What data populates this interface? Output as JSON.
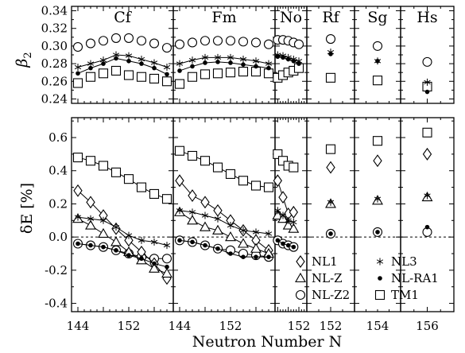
{
  "chart_data": {
    "type": "scatter",
    "xlabel": "Neutron Number N",
    "top_ylabel": "β",
    "top_ylabel_sub": "2",
    "bottom_ylabel": "δE [%]",
    "top_ylim": [
      0.235,
      0.345
    ],
    "top_yticks": [
      "0.24",
      "0.26",
      "0.28",
      "0.30",
      "0.32",
      "0.34"
    ],
    "bottom_ylim": [
      -0.45,
      0.72
    ],
    "bottom_yticks": [
      "0.6",
      "0.4",
      "0.2",
      "0.0",
      "-0.2",
      "-0.4"
    ],
    "legend": {
      "NL1": "NL1",
      "NL3": "NL3",
      "NLZ": "NL-Z",
      "NLRA1": "NL-RA1",
      "NLZ2": "NL-Z2",
      "TM1": "TM1"
    },
    "panels": [
      {
        "element": "Cf",
        "xrange": [
          143,
          159
        ],
        "xticks": [
          "144",
          "152"
        ],
        "beta": {
          "NLZ2": [
            [
              144,
              0.299
            ],
            [
              146,
              0.303
            ],
            [
              148,
              0.306
            ],
            [
              150,
              0.309
            ],
            [
              152,
              0.309
            ],
            [
              154,
              0.306
            ],
            [
              156,
              0.303
            ],
            [
              158,
              0.298
            ]
          ],
          "NL3": [
            [
              144,
              0.276
            ],
            [
              146,
              0.28
            ],
            [
              148,
              0.284
            ],
            [
              150,
              0.29
            ],
            [
              152,
              0.289
            ],
            [
              154,
              0.285
            ],
            [
              156,
              0.281
            ],
            [
              158,
              0.276
            ]
          ],
          "NLRA1": [
            [
              144,
              0.269
            ],
            [
              146,
              0.275
            ],
            [
              148,
              0.28
            ],
            [
              150,
              0.286
            ],
            [
              152,
              0.283
            ],
            [
              154,
              0.28
            ],
            [
              156,
              0.275
            ],
            [
              158,
              0.268
            ]
          ],
          "TM1": [
            [
              144,
              0.258
            ],
            [
              146,
              0.265
            ],
            [
              148,
              0.269
            ],
            [
              150,
              0.272
            ],
            [
              152,
              0.267
            ],
            [
              154,
              0.265
            ],
            [
              156,
              0.263
            ],
            [
              158,
              0.26
            ]
          ]
        },
        "dE": {
          "TM1": [
            [
              144,
              0.48
            ],
            [
              146,
              0.46
            ],
            [
              148,
              0.43
            ],
            [
              150,
              0.39
            ],
            [
              152,
              0.35
            ],
            [
              154,
              0.3
            ],
            [
              156,
              0.26
            ],
            [
              158,
              0.23
            ]
          ],
          "NL1": [
            [
              144,
              0.28
            ],
            [
              146,
              0.21
            ],
            [
              148,
              0.13
            ],
            [
              150,
              0.05
            ],
            [
              152,
              -0.02
            ],
            [
              154,
              -0.09
            ],
            [
              156,
              -0.16
            ],
            [
              158,
              -0.25
            ]
          ],
          "NL3": [
            [
              144,
              0.12
            ],
            [
              146,
              0.11
            ],
            [
              148,
              0.1
            ],
            [
              150,
              0.06
            ],
            [
              152,
              0.01
            ],
            [
              154,
              -0.02
            ],
            [
              156,
              -0.03
            ],
            [
              158,
              -0.05
            ]
          ],
          "NLZ": [
            [
              144,
              0.11
            ],
            [
              146,
              0.07
            ],
            [
              148,
              0.02
            ],
            [
              150,
              -0.03
            ],
            [
              152,
              -0.09
            ],
            [
              154,
              -0.14
            ],
            [
              156,
              -0.19
            ],
            [
              158,
              -0.22
            ]
          ],
          "NLZ2": [
            [
              144,
              -0.04
            ],
            [
              146,
              -0.05
            ],
            [
              148,
              -0.06
            ],
            [
              150,
              -0.08
            ],
            [
              152,
              -0.1
            ],
            [
              154,
              -0.12
            ],
            [
              156,
              -0.13
            ],
            [
              158,
              -0.13
            ]
          ],
          "NLRA1": [
            [
              144,
              -0.04
            ],
            [
              146,
              -0.05
            ],
            [
              148,
              -0.06
            ],
            [
              150,
              -0.08
            ],
            [
              152,
              -0.11
            ],
            [
              154,
              -0.13
            ],
            [
              156,
              -0.16
            ],
            [
              158,
              -0.18
            ]
          ]
        }
      },
      {
        "element": "Fm",
        "xrange": [
          143,
          159
        ],
        "xticks": [
          "144",
          "152"
        ],
        "beta": {
          "NLZ2": [
            [
              144,
              0.302
            ],
            [
              146,
              0.304
            ],
            [
              148,
              0.306
            ],
            [
              150,
              0.306
            ],
            [
              152,
              0.306
            ],
            [
              154,
              0.305
            ],
            [
              156,
              0.304
            ],
            [
              158,
              0.302
            ]
          ],
          "NL3": [
            [
              144,
              0.28
            ],
            [
              146,
              0.284
            ],
            [
              148,
              0.287
            ],
            [
              150,
              0.287
            ],
            [
              152,
              0.287
            ],
            [
              154,
              0.285
            ],
            [
              156,
              0.283
            ],
            [
              158,
              0.28
            ]
          ],
          "NLRA1": [
            [
              144,
              0.272
            ],
            [
              146,
              0.277
            ],
            [
              148,
              0.281
            ],
            [
              150,
              0.282
            ],
            [
              152,
              0.281
            ],
            [
              154,
              0.279
            ],
            [
              156,
              0.277
            ],
            [
              158,
              0.275
            ]
          ],
          "TM1": [
            [
              144,
              0.257
            ],
            [
              146,
              0.265
            ],
            [
              148,
              0.268
            ],
            [
              150,
              0.269
            ],
            [
              152,
              0.27
            ],
            [
              154,
              0.271
            ],
            [
              156,
              0.271
            ],
            [
              158,
              0.269
            ]
          ]
        },
        "dE": {
          "TM1": [
            [
              144,
              0.52
            ],
            [
              146,
              0.49
            ],
            [
              148,
              0.46
            ],
            [
              150,
              0.42
            ],
            [
              152,
              0.38
            ],
            [
              154,
              0.34
            ],
            [
              156,
              0.31
            ],
            [
              158,
              0.3
            ]
          ],
          "NL1": [
            [
              144,
              0.34
            ],
            [
              146,
              0.25
            ],
            [
              148,
              0.21
            ],
            [
              150,
              0.16
            ],
            [
              152,
              0.1
            ],
            [
              154,
              0.04
            ],
            [
              156,
              -0.02
            ],
            [
              158,
              -0.08
            ]
          ],
          "NL3": [
            [
              144,
              0.16
            ],
            [
              146,
              0.15
            ],
            [
              148,
              0.13
            ],
            [
              150,
              0.11
            ],
            [
              152,
              0.07
            ],
            [
              154,
              0.04
            ],
            [
              156,
              0.03
            ],
            [
              158,
              0.02
            ]
          ],
          "NLZ": [
            [
              144,
              0.15
            ],
            [
              146,
              0.1
            ],
            [
              148,
              0.06
            ],
            [
              150,
              0.04
            ],
            [
              152,
              0.0
            ],
            [
              154,
              -0.04
            ],
            [
              156,
              -0.07
            ],
            [
              158,
              -0.1
            ]
          ],
          "NLZ2": [
            [
              144,
              -0.02
            ],
            [
              146,
              -0.03
            ],
            [
              148,
              -0.05
            ],
            [
              150,
              -0.07
            ],
            [
              152,
              -0.08
            ],
            [
              154,
              -0.1
            ],
            [
              156,
              -0.11
            ],
            [
              158,
              -0.12
            ]
          ],
          "NLRA1": [
            [
              144,
              -0.02
            ],
            [
              146,
              -0.03
            ],
            [
              148,
              -0.05
            ],
            [
              150,
              -0.07
            ],
            [
              152,
              -0.1
            ],
            [
              154,
              -0.12
            ],
            [
              156,
              -0.12
            ],
            [
              158,
              -0.12
            ]
          ]
        }
      },
      {
        "element": "No",
        "xrange": [
          143,
          155
        ],
        "xticks": [
          "152"
        ],
        "beta": {
          "NLZ2": [
            [
              144,
              0.307
            ],
            [
              146,
              0.307
            ],
            [
              148,
              0.306
            ],
            [
              150,
              0.304
            ],
            [
              152,
              0.302
            ]
          ],
          "NL3": [
            [
              144,
              0.29
            ],
            [
              146,
              0.289
            ],
            [
              148,
              0.287
            ],
            [
              150,
              0.285
            ],
            [
              152,
              0.283
            ]
          ],
          "NLRA1": [
            [
              144,
              0.288
            ],
            [
              146,
              0.287
            ],
            [
              148,
              0.285
            ],
            [
              150,
              0.283
            ],
            [
              152,
              0.28
            ]
          ],
          "TM1": [
            [
              144,
              0.264
            ],
            [
              146,
              0.267
            ],
            [
              148,
              0.27
            ],
            [
              150,
              0.272
            ],
            [
              152,
              0.275
            ]
          ]
        },
        "dE": {
          "TM1": [
            [
              144,
              0.5
            ],
            [
              146,
              0.46
            ],
            [
              148,
              0.43
            ],
            [
              150,
              0.42
            ]
          ],
          "NL1": [
            [
              144,
              0.34
            ],
            [
              146,
              0.24
            ],
            [
              148,
              0.14
            ],
            [
              150,
              0.15
            ]
          ],
          "NL3": [
            [
              144,
              0.16
            ],
            [
              146,
              0.13
            ],
            [
              148,
              0.1
            ],
            [
              150,
              0.09
            ]
          ],
          "NLZ": [
            [
              144,
              0.13
            ],
            [
              146,
              0.11
            ],
            [
              148,
              0.07
            ],
            [
              150,
              0.05
            ]
          ],
          "NLZ2": [
            [
              144,
              -0.02
            ],
            [
              146,
              -0.04
            ],
            [
              148,
              -0.05
            ],
            [
              150,
              -0.06
            ]
          ],
          "NLRA1": [
            [
              144,
              -0.02
            ],
            [
              146,
              -0.04
            ],
            [
              148,
              -0.05
            ],
            [
              150,
              -0.06
            ]
          ]
        }
      },
      {
        "element": "Rf",
        "xrange": [
          150,
          154
        ],
        "xticks": [
          "152"
        ],
        "beta": {
          "NLZ2": [
            [
              152,
              0.308
            ]
          ],
          "NL3": [
            [
              152,
              0.293
            ]
          ],
          "NLRA1": [
            [
              152,
              0.291
            ]
          ],
          "TM1": [
            [
              152,
              0.264
            ]
          ]
        },
        "dE": {
          "TM1": [
            [
              152,
              0.53
            ]
          ],
          "NL1": [
            [
              152,
              0.42
            ]
          ],
          "NL3": [
            [
              152,
              0.21
            ]
          ],
          "NLZ": [
            [
              152,
              0.2
            ]
          ],
          "NLZ2": [
            [
              152,
              0.02
            ]
          ],
          "NLRA1": [
            [
              152,
              0.02
            ]
          ]
        }
      },
      {
        "element": "Sg",
        "xrange": [
          152,
          156
        ],
        "xticks": [
          "154"
        ],
        "beta": {
          "NLZ2": [
            [
              154,
              0.3
            ]
          ],
          "NL3": [
            [
              154,
              0.283
            ]
          ],
          "NLRA1": [
            [
              154,
              0.283
            ]
          ],
          "TM1": [
            [
              154,
              0.261
            ]
          ]
        },
        "dE": {
          "TM1": [
            [
              154,
              0.58
            ]
          ],
          "NL1": [
            [
              154,
              0.46
            ]
          ],
          "NL3": [
            [
              154,
              0.23
            ]
          ],
          "NLZ": [
            [
              154,
              0.22
            ]
          ],
          "NLZ2": [
            [
              154,
              0.03
            ]
          ],
          "NLRA1": [
            [
              154,
              0.03
            ]
          ]
        }
      },
      {
        "element": "Hs",
        "xrange": [
          154,
          158
        ],
        "xticks": [
          "156"
        ],
        "beta": {
          "NLZ2": [
            [
              156,
              0.282
            ]
          ],
          "NL3": [
            [
              156,
              0.259
            ]
          ],
          "NLRA1": [
            [
              156,
              0.248
            ]
          ],
          "TM1": [
            [
              156,
              0.254
            ]
          ]
        },
        "dE": {
          "TM1": [
            [
              156,
              0.63
            ]
          ],
          "NL1": [
            [
              156,
              0.5
            ]
          ],
          "NL3": [
            [
              156,
              0.25
            ]
          ],
          "NLZ": [
            [
              156,
              0.24
            ]
          ],
          "NLZ2": [
            [
              156,
              0.03
            ]
          ],
          "NLRA1": [
            [
              156,
              0.06
            ]
          ]
        }
      }
    ]
  }
}
